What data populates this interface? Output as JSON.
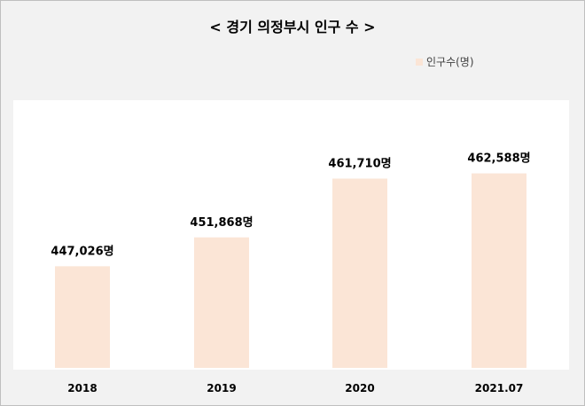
{
  "chart_data": {
    "type": "bar",
    "title": "< 경기 의정부시 인구 수 >",
    "categories": [
      "2018",
      "2019",
      "2020",
      "2021.07"
    ],
    "series": [
      {
        "name": "인구수(명)",
        "values": [
          447026,
          451868,
          461710,
          462588
        ],
        "labels": [
          "447,026명",
          "451,868명",
          "461,710명",
          "462,588명"
        ]
      }
    ],
    "xlabel": "",
    "ylabel": "",
    "ylim": [
      430000,
      475000
    ],
    "grid": false,
    "legend": "top-right",
    "bar_color": "#fbe5d6"
  }
}
